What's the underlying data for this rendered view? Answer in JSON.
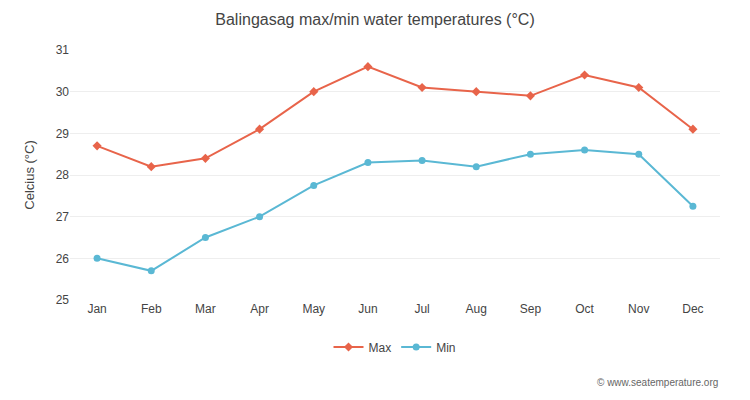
{
  "chart_data": {
    "type": "line",
    "title": "Balingasag max/min water temperatures (°C)",
    "ylabel": "Celcius (°C)",
    "categories": [
      "Jan",
      "Feb",
      "Mar",
      "Apr",
      "May",
      "Jun",
      "Jul",
      "Aug",
      "Sep",
      "Oct",
      "Nov",
      "Dec"
    ],
    "series": [
      {
        "name": "Max",
        "color": "#e8644a",
        "marker": "diamond",
        "values": [
          28.7,
          28.2,
          28.4,
          29.1,
          30.0,
          30.6,
          30.1,
          30.0,
          29.9,
          30.4,
          30.1,
          29.1
        ]
      },
      {
        "name": "Min",
        "color": "#5ab8d4",
        "marker": "circle",
        "values": [
          26.0,
          25.7,
          26.5,
          27.0,
          27.75,
          28.3,
          28.35,
          28.2,
          28.5,
          28.6,
          28.5,
          27.25
        ]
      }
    ],
    "ylim": [
      25,
      31
    ],
    "yticks": [
      25,
      26,
      27,
      28,
      29,
      30,
      31
    ],
    "grid": true,
    "legend": "bottom",
    "annotations": [
      "© www.seatemperature.org"
    ]
  }
}
